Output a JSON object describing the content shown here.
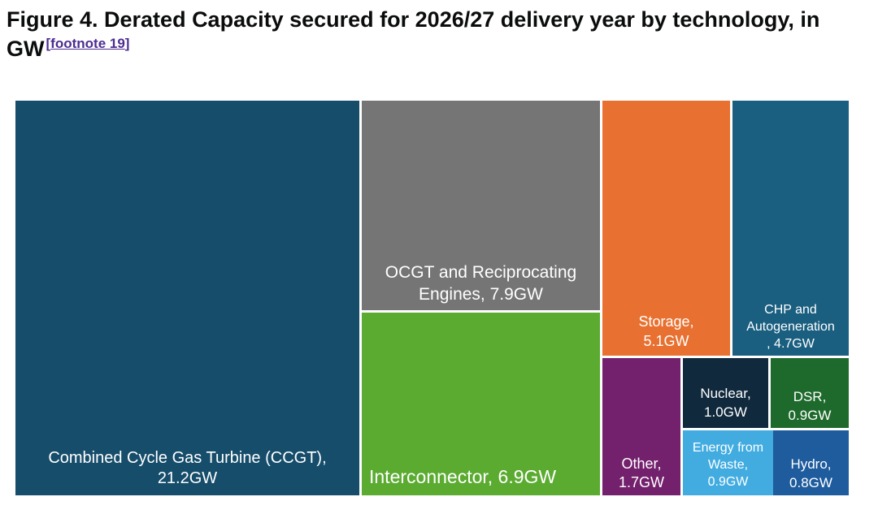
{
  "figure": {
    "title": "Figure 4. Derated Capacity secured for 2026/27 delivery year by technology, in GW",
    "footnote_open": "[",
    "footnote_text": "footnote 19",
    "footnote_close": "]"
  },
  "chart_data": {
    "type": "treemap",
    "title": "Figure 4. Derated Capacity secured for 2026/27 delivery year by technology, in GW",
    "unit": "GW",
    "items": [
      {
        "name": "Combined Cycle Gas Turbine (CCGT)",
        "value": 21.2,
        "label_lines": [
          "Combined Cycle Gas Turbine (CCGT),",
          "21.2GW"
        ],
        "color": "#164d6b"
      },
      {
        "name": "OCGT and Reciprocating Engines",
        "value": 7.9,
        "label_lines": [
          "OCGT and Reciprocating",
          "Engines, 7.9GW"
        ],
        "color": "#757575"
      },
      {
        "name": "Interconnector",
        "value": 6.9,
        "label_lines": [
          "Interconnector, 6.9GW"
        ],
        "color": "#5bab31"
      },
      {
        "name": "Storage",
        "value": 5.1,
        "label_lines": [
          "Storage,",
          "5.1GW"
        ],
        "color": "#e87131"
      },
      {
        "name": "CHP and Autogeneration",
        "value": 4.7,
        "label_lines": [
          "CHP and",
          "Autogeneration",
          ", 4.7GW"
        ],
        "color": "#1a5f80"
      },
      {
        "name": "Other",
        "value": 1.7,
        "label_lines": [
          "Other,",
          "1.7GW"
        ],
        "color": "#73206d"
      },
      {
        "name": "Nuclear",
        "value": 1.0,
        "label_lines": [
          "Nuclear,",
          "1.0GW"
        ],
        "color": "#10293d"
      },
      {
        "name": "DSR",
        "value": 0.9,
        "label_lines": [
          "DSR,",
          "0.9GW"
        ],
        "color": "#1e6a2c"
      },
      {
        "name": "Energy from Waste",
        "value": 0.9,
        "label_lines": [
          "Energy from",
          "Waste,",
          "0.9GW"
        ],
        "color": "#42ace1"
      },
      {
        "name": "Hydro",
        "value": 0.8,
        "label_lines": [
          "Hydro,",
          "0.8GW"
        ],
        "color": "#1f5c9e"
      }
    ]
  }
}
